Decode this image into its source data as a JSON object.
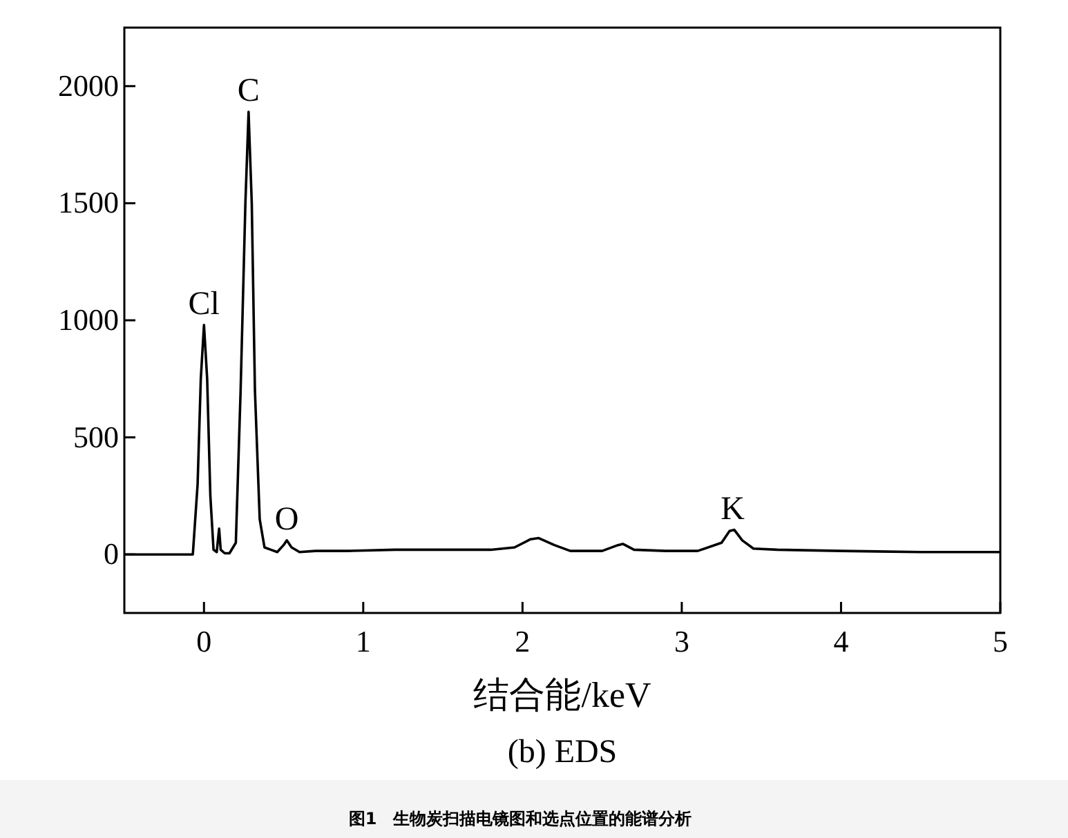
{
  "chart_data": {
    "type": "line",
    "title": "(b) EDS",
    "xlabel": "结合能/keV",
    "annotations": [
      {
        "text": "Cl",
        "x": 0,
        "y": 980
      },
      {
        "text": "C",
        "x": 0.28,
        "y": 1890
      },
      {
        "text": "O",
        "x": 0.52,
        "y": 60
      },
      {
        "text": "K",
        "x": 3.32,
        "y": 105
      },
      "图1　生物炭扫描电镜图和选点位置的能谱分析"
    ],
    "x": [
      -0.5,
      -0.1,
      -0.07,
      -0.04,
      -0.02,
      0,
      0.02,
      0.04,
      0.06,
      0.08,
      0.095,
      0.105,
      0.13,
      0.16,
      0.2,
      0.23,
      0.26,
      0.28,
      0.3,
      0.32,
      0.35,
      0.38,
      0.42,
      0.46,
      0.5,
      0.52,
      0.55,
      0.6,
      0.7,
      0.9,
      1.2,
      1.5,
      1.8,
      1.95,
      2.05,
      2.1,
      2.2,
      2.3,
      2.5,
      2.6,
      2.63,
      2.7,
      2.9,
      3.1,
      3.25,
      3.3,
      3.33,
      3.38,
      3.45,
      3.6,
      4.0,
      4.5,
      5.0
    ],
    "series": [
      {
        "color": "#000000",
        "values": [
          0,
          0,
          0,
          300,
          750,
          980,
          750,
          250,
          20,
          10,
          110,
          20,
          5,
          5,
          50,
          700,
          1500,
          1890,
          1500,
          700,
          150,
          30,
          20,
          10,
          40,
          60,
          30,
          10,
          15,
          15,
          20,
          20,
          20,
          30,
          65,
          70,
          40,
          15,
          15,
          40,
          45,
          20,
          15,
          15,
          50,
          100,
          105,
          60,
          25,
          20,
          15,
          10,
          10
        ]
      }
    ],
    "xlim": [
      -0.5,
      5
    ],
    "ylim": [
      -250,
      2250
    ],
    "xticks": [
      0,
      1,
      2,
      3,
      4,
      5
    ],
    "yticks": [
      0,
      500,
      1000,
      1500,
      2000
    ],
    "grid": false,
    "marker": "none",
    "line_style": "solid"
  }
}
